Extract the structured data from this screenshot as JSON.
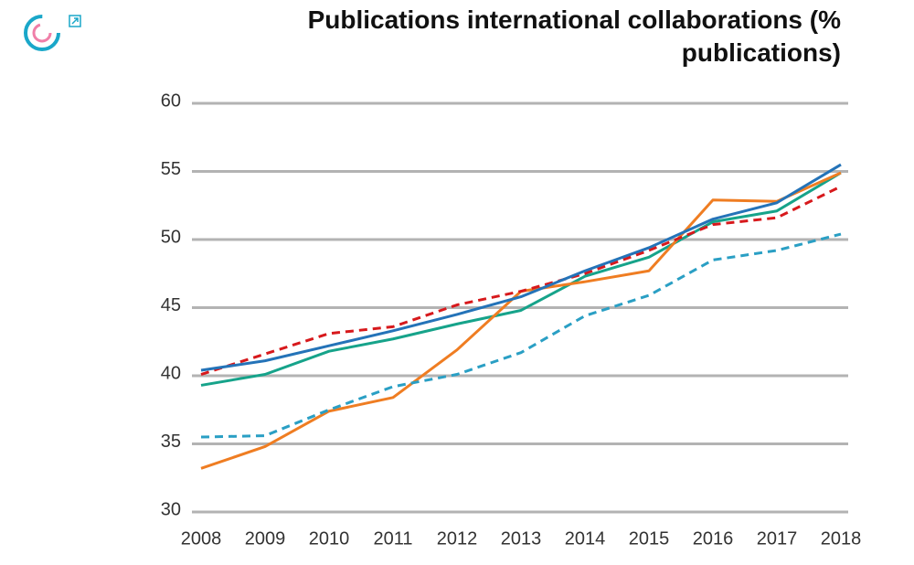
{
  "chart_data": {
    "type": "line",
    "title": "Publications international collaborations (% publications)",
    "categories": [
      "2008",
      "2009",
      "2010",
      "2011",
      "2012",
      "2013",
      "2014",
      "2015",
      "2016",
      "2017",
      "2018"
    ],
    "series": [
      {
        "color": "#16a38a",
        "dash": false,
        "values": [
          39.3,
          40.1,
          41.8,
          42.7,
          43.8,
          44.8,
          47.3,
          48.7,
          51.3,
          52.1,
          54.9
        ]
      },
      {
        "color": "#ef7d22",
        "dash": false,
        "values": [
          33.2,
          34.8,
          37.4,
          38.4,
          41.9,
          46.2,
          46.9,
          47.7,
          52.9,
          52.8,
          54.9
        ]
      },
      {
        "color": "#2a9fc4",
        "dash": true,
        "values": [
          35.5,
          35.6,
          37.5,
          39.2,
          40.1,
          41.7,
          44.4,
          45.9,
          48.5,
          49.2,
          50.4
        ]
      },
      {
        "color": "#d7191c",
        "dash": true,
        "values": [
          40.1,
          41.6,
          43.1,
          43.6,
          45.2,
          46.2,
          47.5,
          49.2,
          51.1,
          51.6,
          53.9
        ]
      },
      {
        "color": "#2473b8",
        "dash": false,
        "values": [
          40.4,
          41.1,
          42.2,
          43.3,
          44.5,
          45.8,
          47.7,
          49.4,
          51.5,
          52.7,
          55.5
        ]
      }
    ],
    "ylim": [
      30,
      60
    ],
    "yticks": [
      30,
      35,
      40,
      45,
      50,
      55,
      60
    ],
    "grid": true
  }
}
